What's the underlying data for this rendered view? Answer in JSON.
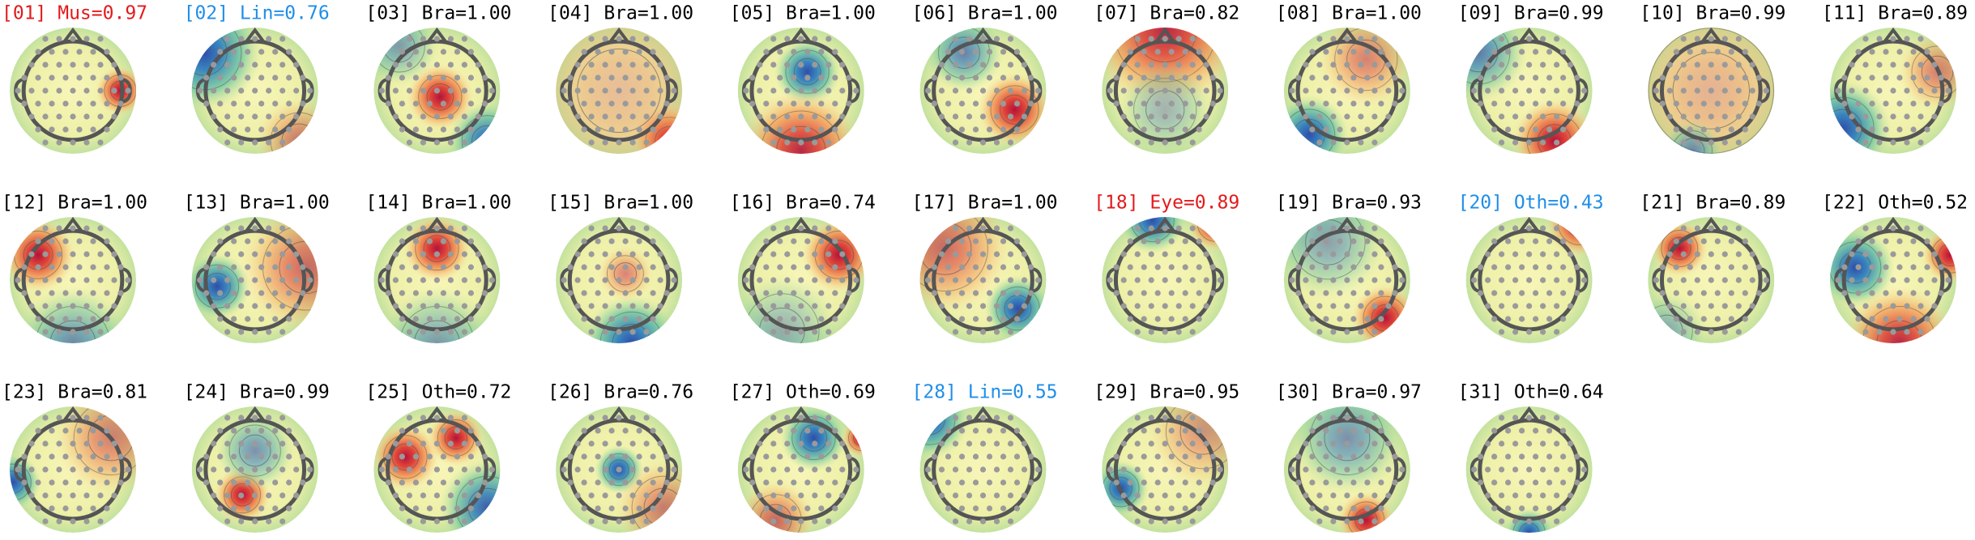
{
  "components": [
    {
      "label": "[01] Mus=0.97",
      "color": "#e31a1c"
    },
    {
      "label": "[02] Lin=0.76",
      "color": "#1f8ee8"
    },
    {
      "label": "[03] Bra=1.00",
      "color": "#000000"
    },
    {
      "label": "[04] Bra=1.00",
      "color": "#000000"
    },
    {
      "label": "[05] Bra=1.00",
      "color": "#000000"
    },
    {
      "label": "[06] Bra=1.00",
      "color": "#000000"
    },
    {
      "label": "[07] Bra=0.82",
      "color": "#000000"
    },
    {
      "label": "[08] Bra=1.00",
      "color": "#000000"
    },
    {
      "label": "[09] Bra=0.99",
      "color": "#000000"
    },
    {
      "label": "[10] Bra=0.99",
      "color": "#000000"
    },
    {
      "label": "[11] Bra=0.89",
      "color": "#000000"
    },
    {
      "label": "[12] Bra=1.00",
      "color": "#000000"
    },
    {
      "label": "[13] Bra=1.00",
      "color": "#000000"
    },
    {
      "label": "[14] Bra=1.00",
      "color": "#000000"
    },
    {
      "label": "[15] Bra=1.00",
      "color": "#000000"
    },
    {
      "label": "[16] Bra=0.74",
      "color": "#000000"
    },
    {
      "label": "[17] Bra=1.00",
      "color": "#000000"
    },
    {
      "label": "[18] Eye=0.89",
      "color": "#e31a1c"
    },
    {
      "label": "[19] Bra=0.93",
      "color": "#000000"
    },
    {
      "label": "[20] Oth=0.43",
      "color": "#1f8ee8"
    },
    {
      "label": "[21] Bra=0.89",
      "color": "#000000"
    },
    {
      "label": "[22] Oth=0.52",
      "color": "#000000"
    },
    {
      "label": "[23] Bra=0.81",
      "color": "#000000"
    },
    {
      "label": "[24] Bra=0.99",
      "color": "#000000"
    },
    {
      "label": "[25] Oth=0.72",
      "color": "#000000"
    },
    {
      "label": "[26] Bra=0.76",
      "color": "#000000"
    },
    {
      "label": "[27] Oth=0.69",
      "color": "#000000"
    },
    {
      "label": "[28] Lin=0.55",
      "color": "#1f8ee8"
    },
    {
      "label": "[29] Bra=0.95",
      "color": "#000000"
    },
    {
      "label": "[30] Bra=0.97",
      "color": "#000000"
    },
    {
      "label": "[31] Oth=0.64",
      "color": "#000000"
    }
  ]
}
